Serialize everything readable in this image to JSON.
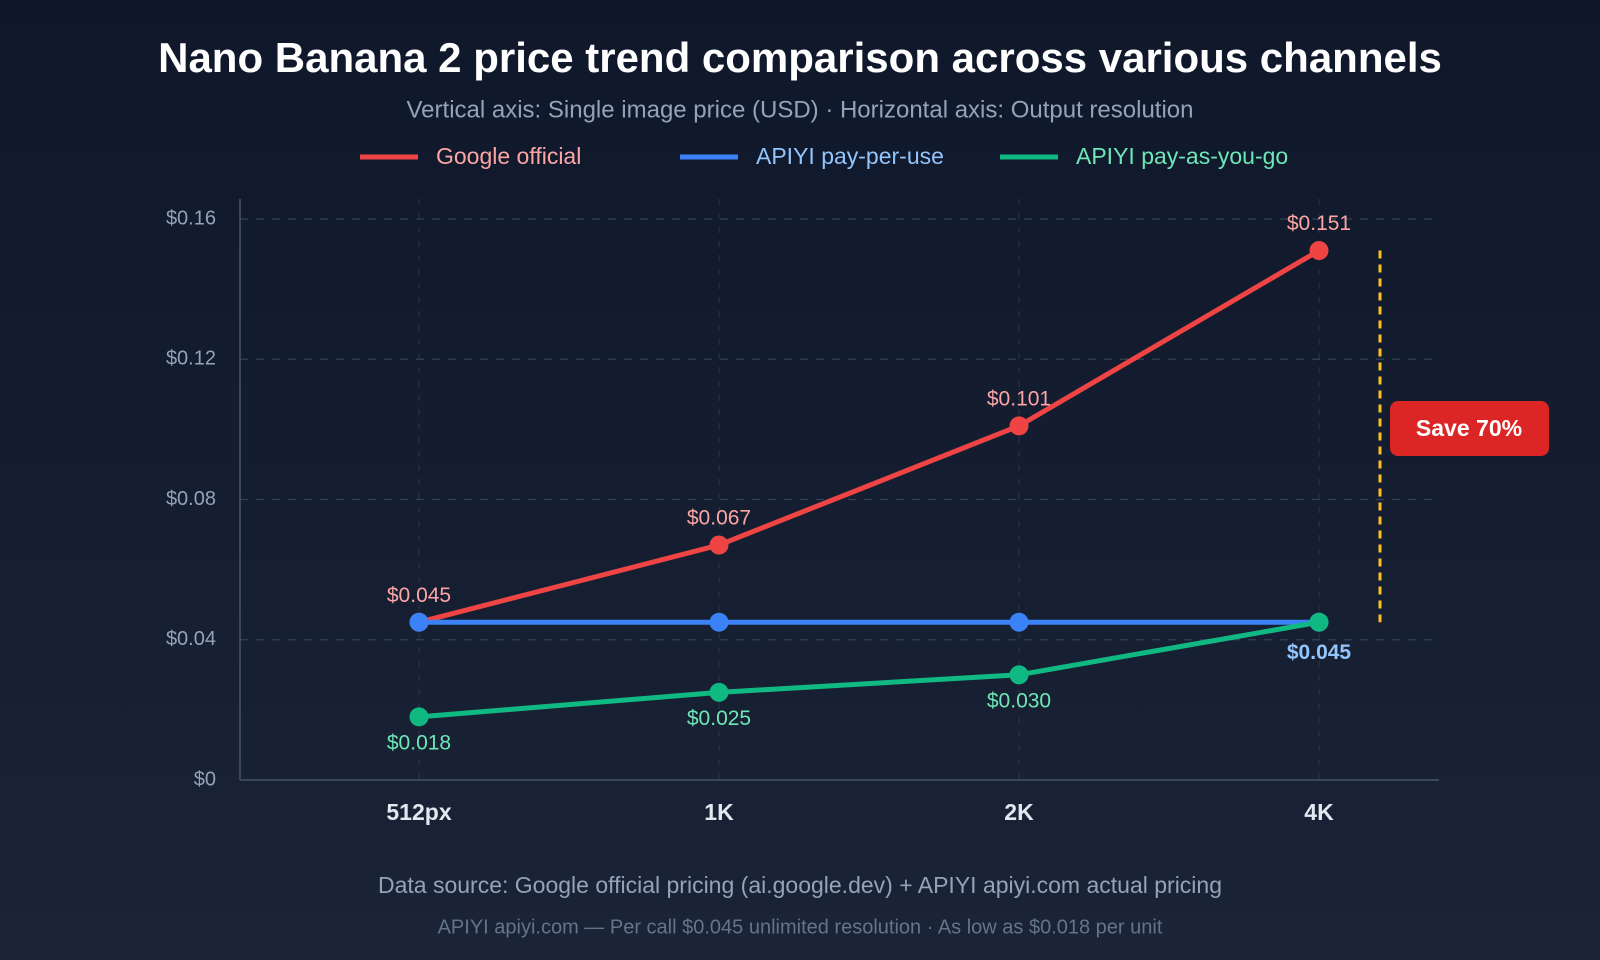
{
  "chart_data": {
    "type": "line",
    "title": "Nano Banana 2 price trend comparison across various channels",
    "subtitle": "Vertical axis: Single image price (USD) · Horizontal axis: Output resolution",
    "categories": [
      "512px",
      "1K",
      "2K",
      "4K"
    ],
    "series": [
      {
        "name": "Google official",
        "color": "#ef4444",
        "label_color": "#fca5a5",
        "values": [
          0.045,
          0.067,
          0.101,
          0.151
        ],
        "value_labels": [
          "$0.045",
          "$0.067",
          "$0.101",
          "$0.151"
        ]
      },
      {
        "name": "APIYI pay-per-use",
        "color": "#3b82f6",
        "label_color": "#93c5fd",
        "values": [
          0.045,
          0.045,
          0.045,
          0.045
        ],
        "value_labels": [
          null,
          null,
          null,
          "$0.045"
        ]
      },
      {
        "name": "APIYI pay-as-you-go",
        "color": "#10b981",
        "label_color": "#6ee7b7",
        "values": [
          0.018,
          0.025,
          0.03,
          0.045
        ],
        "value_labels": [
          "$0.018",
          "$0.025",
          "$0.030",
          null
        ]
      }
    ],
    "ylim": [
      0,
      0.16
    ],
    "yticks": [
      {
        "value": 0,
        "label": "$0"
      },
      {
        "value": 0.04,
        "label": "$0.04"
      },
      {
        "value": 0.08,
        "label": "$0.08"
      },
      {
        "value": 0.12,
        "label": "$0.12"
      },
      {
        "value": 0.16,
        "label": "$0.16"
      }
    ],
    "grid": true,
    "annotation": "Save 70%",
    "source": "Data source: Google official pricing (ai.google.dev) + APIYI apiyi.com actual pricing",
    "footnote": "APIYI apiyi.com — Per call $0.045 unlimited resolution · As low as $0.018 per unit"
  }
}
